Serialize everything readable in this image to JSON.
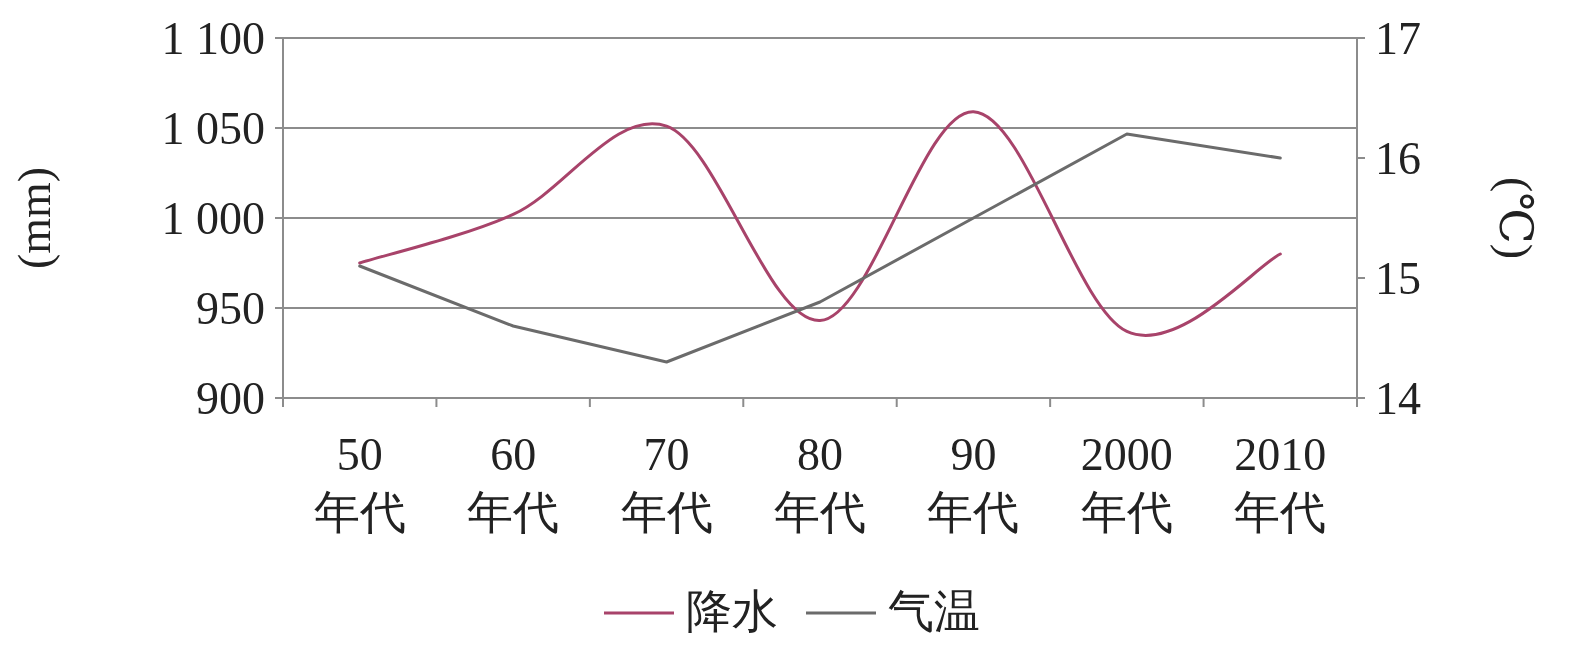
{
  "chart_data": {
    "type": "line",
    "categories": [
      "50 年代",
      "60 年代",
      "70 年代",
      "80 年代",
      "90 年代",
      "2000 年代",
      "2010 年代"
    ],
    "series": [
      {
        "name": "降水",
        "color": "#a8436a",
        "values": [
          975,
          1002,
          1051,
          943,
          1059,
          937,
          980
        ]
      },
      {
        "name": "气温",
        "color": "#6b6b6b",
        "axis": "y2",
        "values": [
          15.1,
          14.6,
          14.3,
          14.8,
          15.5,
          16.2,
          16.0
        ]
      }
    ],
    "ylabel": "(mm)",
    "y2label": "(℃)",
    "ylim": [
      900,
      1100
    ],
    "yticks": [
      900,
      950,
      {
        "value": 1000,
        "label": "1 000"
      },
      {
        "value": 1050,
        "label": "1 050"
      },
      {
        "value": 1100,
        "label": "1 100"
      }
    ],
    "y2lim": [
      14,
      17
    ],
    "y2ticks": [
      14,
      15,
      16,
      17
    ],
    "grid": "y",
    "legend": "bottom",
    "marker": "none",
    "line_style": "solid"
  }
}
